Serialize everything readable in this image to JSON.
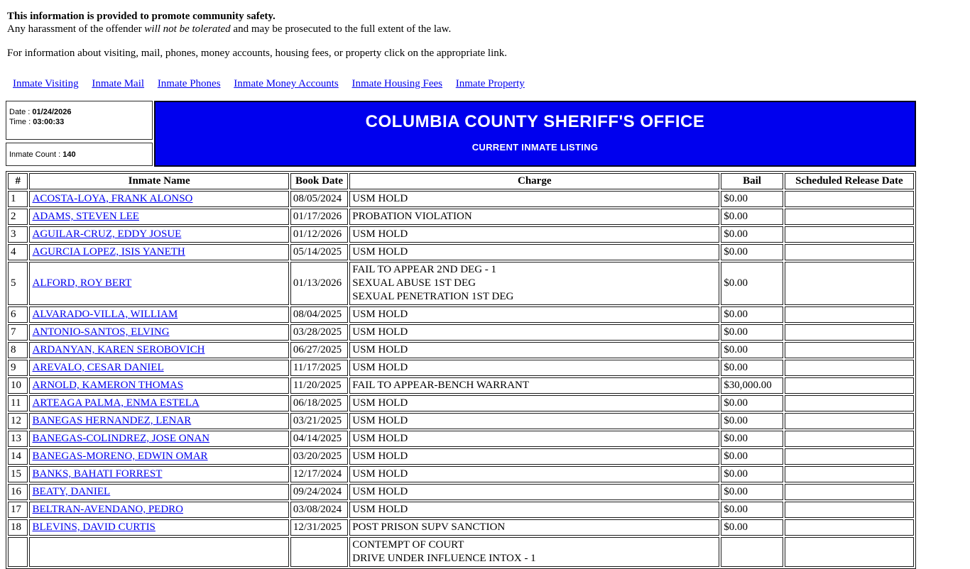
{
  "page": {
    "notice_bold": "This information is provided to promote community safety.",
    "notice_pre": "Any harassment of the offender ",
    "notice_italic": "will not be tolerated",
    "notice_post": " and may be prosecuted to the full extent of the law.",
    "info_line": "For information about visiting, mail, phones, money accounts, housing fees, or property click on the appropriate link."
  },
  "nav": {
    "links": [
      {
        "label": "Inmate Visiting"
      },
      {
        "label": "Inmate Mail"
      },
      {
        "label": "Inmate Phones"
      },
      {
        "label": "Inmate Money Accounts"
      },
      {
        "label": "Inmate Housing Fees"
      },
      {
        "label": "Inmate Property"
      }
    ]
  },
  "header": {
    "date_label": "Date :",
    "date_value": "01/24/2026",
    "time_label": "Time :",
    "time_value": "03:00:33",
    "inmate_count_label": "Inmate Count :",
    "inmate_count_value": "140",
    "title": "COLUMBIA COUNTY SHERIFF'S OFFICE",
    "subtitle": "CURRENT INMATE LISTING",
    "colors": {
      "banner_bg": "#0000ee",
      "banner_text": "#ffffff",
      "link": "#0000ee"
    }
  },
  "table": {
    "columns": [
      "#",
      "Inmate Name",
      "Book Date",
      "Charge",
      "Bail",
      "Scheduled Release Date"
    ],
    "rows": [
      {
        "num": "1",
        "name": "ACOSTA-LOYA, FRANK ALONSO",
        "book_date": "08/05/2024",
        "charges": [
          "USM HOLD"
        ],
        "bail": "$0.00",
        "release": ""
      },
      {
        "num": "2",
        "name": "ADAMS, STEVEN LEE",
        "book_date": "01/17/2026",
        "charges": [
          "PROBATION VIOLATION"
        ],
        "bail": "$0.00",
        "release": ""
      },
      {
        "num": "3",
        "name": "AGUILAR-CRUZ, EDDY JOSUE",
        "book_date": "01/12/2026",
        "charges": [
          "USM HOLD"
        ],
        "bail": "$0.00",
        "release": ""
      },
      {
        "num": "4",
        "name": "AGURCIA LOPEZ, ISIS YANETH",
        "book_date": "05/14/2025",
        "charges": [
          "USM HOLD"
        ],
        "bail": "$0.00",
        "release": ""
      },
      {
        "num": "5",
        "name": "ALFORD, ROY BERT",
        "book_date": "01/13/2026",
        "charges": [
          "FAIL TO APPEAR 2ND DEG - 1",
          "SEXUAL ABUSE 1ST DEG",
          "SEXUAL PENETRATION 1ST DEG"
        ],
        "bail": "$0.00",
        "release": ""
      },
      {
        "num": "6",
        "name": "ALVARADO-VILLA, WILLIAM",
        "book_date": "08/04/2025",
        "charges": [
          "USM HOLD"
        ],
        "bail": "$0.00",
        "release": ""
      },
      {
        "num": "7",
        "name": "ANTONIO-SANTOS, ELVING",
        "book_date": "03/28/2025",
        "charges": [
          "USM HOLD"
        ],
        "bail": "$0.00",
        "release": ""
      },
      {
        "num": "8",
        "name": "ARDANYAN, KAREN SEROBOVICH",
        "book_date": "06/27/2025",
        "charges": [
          "USM HOLD"
        ],
        "bail": "$0.00",
        "release": ""
      },
      {
        "num": "9",
        "name": "AREVALO, CESAR DANIEL",
        "book_date": "11/17/2025",
        "charges": [
          "USM HOLD"
        ],
        "bail": "$0.00",
        "release": ""
      },
      {
        "num": "10",
        "name": "ARNOLD, KAMERON THOMAS",
        "book_date": "11/20/2025",
        "charges": [
          "FAIL TO APPEAR-BENCH WARRANT"
        ],
        "bail": "$30,000.00",
        "release": ""
      },
      {
        "num": "11",
        "name": "ARTEAGA PALMA, ENMA ESTELA",
        "book_date": "06/18/2025",
        "charges": [
          "USM HOLD"
        ],
        "bail": "$0.00",
        "release": ""
      },
      {
        "num": "12",
        "name": "BANEGAS HERNANDEZ, LENAR",
        "book_date": "03/21/2025",
        "charges": [
          "USM HOLD"
        ],
        "bail": "$0.00",
        "release": ""
      },
      {
        "num": "13",
        "name": "BANEGAS-COLINDREZ, JOSE ONAN",
        "book_date": "04/14/2025",
        "charges": [
          "USM HOLD"
        ],
        "bail": "$0.00",
        "release": ""
      },
      {
        "num": "14",
        "name": "BANEGAS-MORENO, EDWIN OMAR",
        "book_date": "03/20/2025",
        "charges": [
          "USM HOLD"
        ],
        "bail": "$0.00",
        "release": ""
      },
      {
        "num": "15",
        "name": "BANKS, BAHATI FORREST",
        "book_date": "12/17/2024",
        "charges": [
          "USM HOLD"
        ],
        "bail": "$0.00",
        "release": ""
      },
      {
        "num": "16",
        "name": "BEATY, DANIEL",
        "book_date": "09/24/2024",
        "charges": [
          "USM HOLD"
        ],
        "bail": "$0.00",
        "release": ""
      },
      {
        "num": "17",
        "name": "BELTRAN-AVENDANO, PEDRO",
        "book_date": "03/08/2024",
        "charges": [
          "USM HOLD"
        ],
        "bail": "$0.00",
        "release": ""
      },
      {
        "num": "18",
        "name": "BLEVINS, DAVID CURTIS",
        "book_date": "12/31/2025",
        "charges": [
          "POST PRISON SUPV SANCTION"
        ],
        "bail": "$0.00",
        "release": ""
      },
      {
        "num": "",
        "name": "",
        "book_date": "",
        "charges": [
          "CONTEMPT OF COURT",
          "DRIVE UNDER INFLUENCE INTOX - 1"
        ],
        "bail": "",
        "release": ""
      }
    ]
  }
}
